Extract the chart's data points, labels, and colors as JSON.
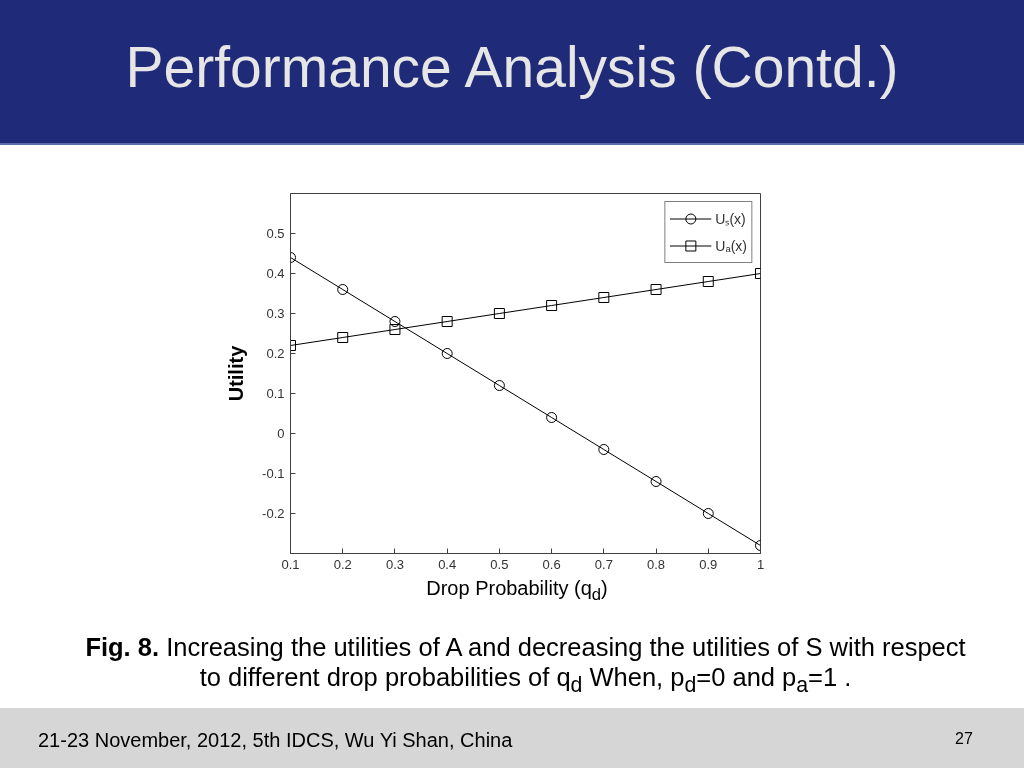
{
  "chart_data": {
    "type": "line",
    "title": "Performance Analysis (Contd.)",
    "xlabel": "Drop Probability (q$_{d}$)",
    "ylabel": "Utility",
    "x": [
      0.1,
      0.2,
      0.3,
      0.4,
      0.5,
      0.6,
      0.7,
      0.8,
      0.9,
      1
    ],
    "series": [
      {
        "name": "Uₛ(x)",
        "color": "#000000",
        "marker": "circle",
        "values": [
          0.44,
          0.36,
          0.28,
          0.2,
          0.12,
          0.04,
          -0.04,
          -0.12,
          -0.2,
          -0.28
        ]
      },
      {
        "name": "Uₐ(x)",
        "color": "#000000",
        "marker": "square",
        "values": [
          0.22,
          0.24,
          0.26,
          0.28,
          0.3,
          0.32,
          0.34,
          0.36,
          0.38,
          0.4
        ]
      }
    ],
    "xlim": [
      0.1,
      1
    ],
    "ylim": [
      -0.3,
      0.6
    ],
    "xticks": [
      0.1,
      0.2,
      0.3,
      0.4,
      0.5,
      0.6,
      0.7,
      0.8,
      0.9,
      1
    ],
    "yticks": [
      -0.2,
      -0.1,
      0,
      0.1,
      0.2,
      0.3,
      0.4,
      0.5
    ],
    "legend": "top right",
    "annotations": [
      "Fig. 8.",
      "Increasing the utilities of A and decreasing the utilities of S with respect to different drop probabilities of q$_{d}$ When, p$_{d}$=0 and p$_{a}$=1 .",
      "21-23 November, 2012, 5th IDCS, Wu Yi Shan, China",
      "27"
    ]
  }
}
